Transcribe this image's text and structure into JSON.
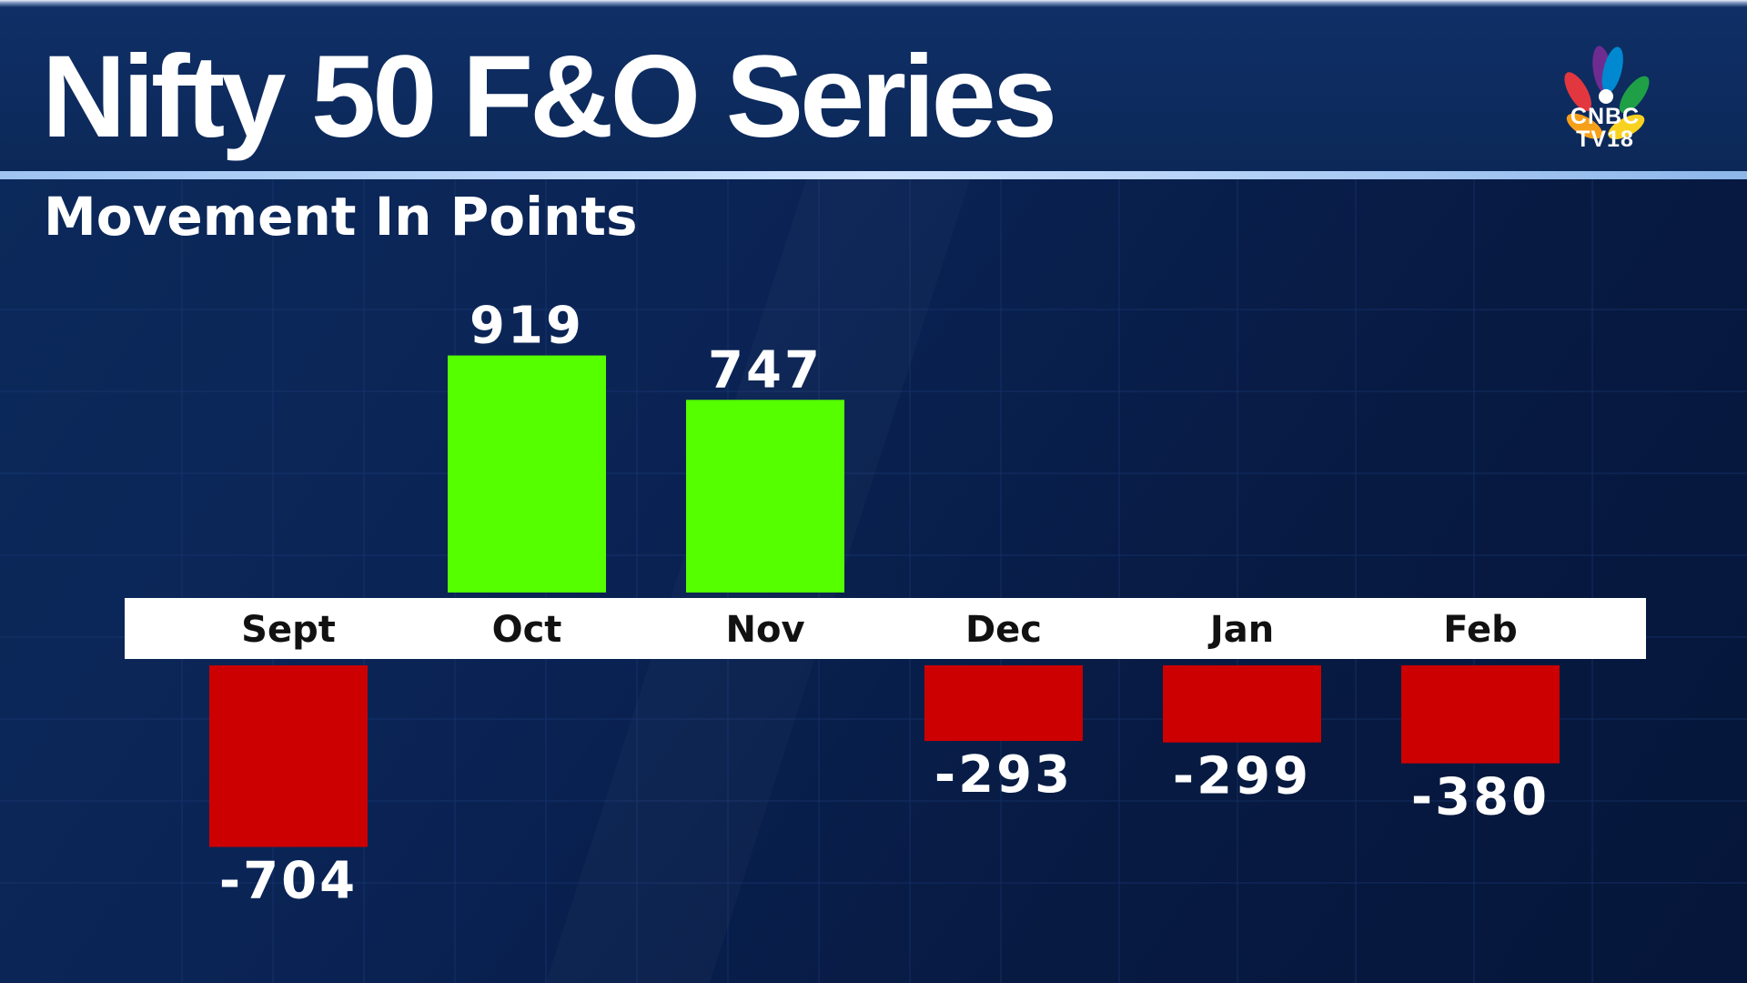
{
  "title": "Nifty 50 F&O Series",
  "subtitle": "Movement In Points",
  "logo": {
    "line1": "CNBC",
    "line2": "TV18",
    "icon": "peacock-icon"
  },
  "colors": {
    "positive": "#55ff00",
    "negative": "#cc0000",
    "axis_band": "#ffffff",
    "background": "#0a2354"
  },
  "chart_data": {
    "type": "bar",
    "title": "Nifty 50 F&O Series",
    "subtitle": "Movement In Points",
    "categories": [
      "Sept",
      "Oct",
      "Nov",
      "Dec",
      "Jan",
      "Feb"
    ],
    "values": [
      -704,
      919,
      747,
      -293,
      -299,
      -380
    ],
    "value_labels": [
      "-704",
      "919",
      "747",
      "-293",
      "-299",
      "-380"
    ],
    "xlabel": "",
    "ylabel": "",
    "ylim": [
      -1000,
      1000
    ],
    "grid": true,
    "legend": "none"
  }
}
